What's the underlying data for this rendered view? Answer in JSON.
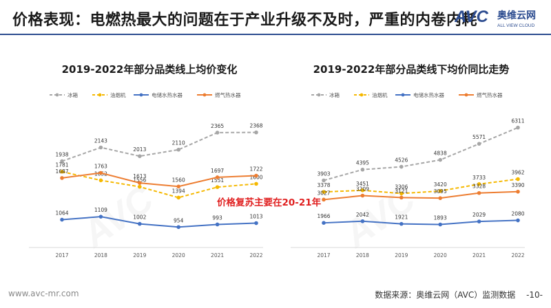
{
  "header": {
    "title": "价格表现：电燃热最大的问题在于产业升级不及时，严重的内卷内耗",
    "logo_text": "AVC",
    "logo_cn": "奥维云网",
    "logo_sub": "ALL VIEW CLOUD"
  },
  "colors": {
    "header_rule": "#2b4b8f",
    "refrigerator": "#a6a6a6",
    "range_hood": "#f5b800",
    "electric_heater": "#4472c4",
    "gas_heater": "#ed7d31",
    "annotation": "#e02020"
  },
  "chart_data": [
    {
      "type": "line",
      "title": "2019-2022年部分品类线上均价变化",
      "categories": [
        "2017",
        "2018",
        "2019",
        "2020",
        "2021",
        "2022"
      ],
      "ylim": [
        700,
        2600
      ],
      "legend_position": "top",
      "grid": false,
      "series": [
        {
          "name": "冰箱",
          "style": "dashed",
          "values": [
            1938,
            2143,
            2013,
            2110,
            2365,
            2368
          ]
        },
        {
          "name": "油烟机",
          "style": "dashed",
          "values": [
            1781,
            1652,
            1556,
            1394,
            1551,
            1600
          ]
        },
        {
          "name": "电储水热水器",
          "style": "solid",
          "values": [
            1064,
            1109,
            1002,
            954,
            993,
            1013
          ]
        },
        {
          "name": "燃气热水器",
          "style": "solid",
          "values": [
            1687,
            1763,
            1613,
            1560,
            1697,
            1722
          ]
        }
      ],
      "annotation": "价格复苏主要在20-21年"
    },
    {
      "type": "line",
      "title": "2019-2022年部分品类线下均价同比走势",
      "categories": [
        "2017",
        "2018",
        "2019",
        "2020",
        "2021",
        "2022"
      ],
      "ylim": [
        1000,
        6800
      ],
      "legend_position": "top",
      "grid": false,
      "series": [
        {
          "name": "冰箱",
          "style": "dashed",
          "values": [
            3903,
            4395,
            4526,
            4838,
            5571,
            6311
          ]
        },
        {
          "name": "油烟机",
          "style": "dashed",
          "values": [
            3378,
            3451,
            3306,
            3420,
            3733,
            3962
          ]
        },
        {
          "name": "电储水热水器",
          "style": "solid",
          "values": [
            1966,
            2042,
            1921,
            1893,
            2029,
            2080
          ]
        },
        {
          "name": "燃气热水器",
          "style": "solid",
          "values": [
            3027,
            3209,
            3121,
            3095,
            3328,
            3390
          ]
        }
      ]
    }
  ],
  "footer": {
    "url": "www.avc-mr.com",
    "source": "数据来源：奥维云网（AVC）监测数据",
    "page": "-10-"
  }
}
